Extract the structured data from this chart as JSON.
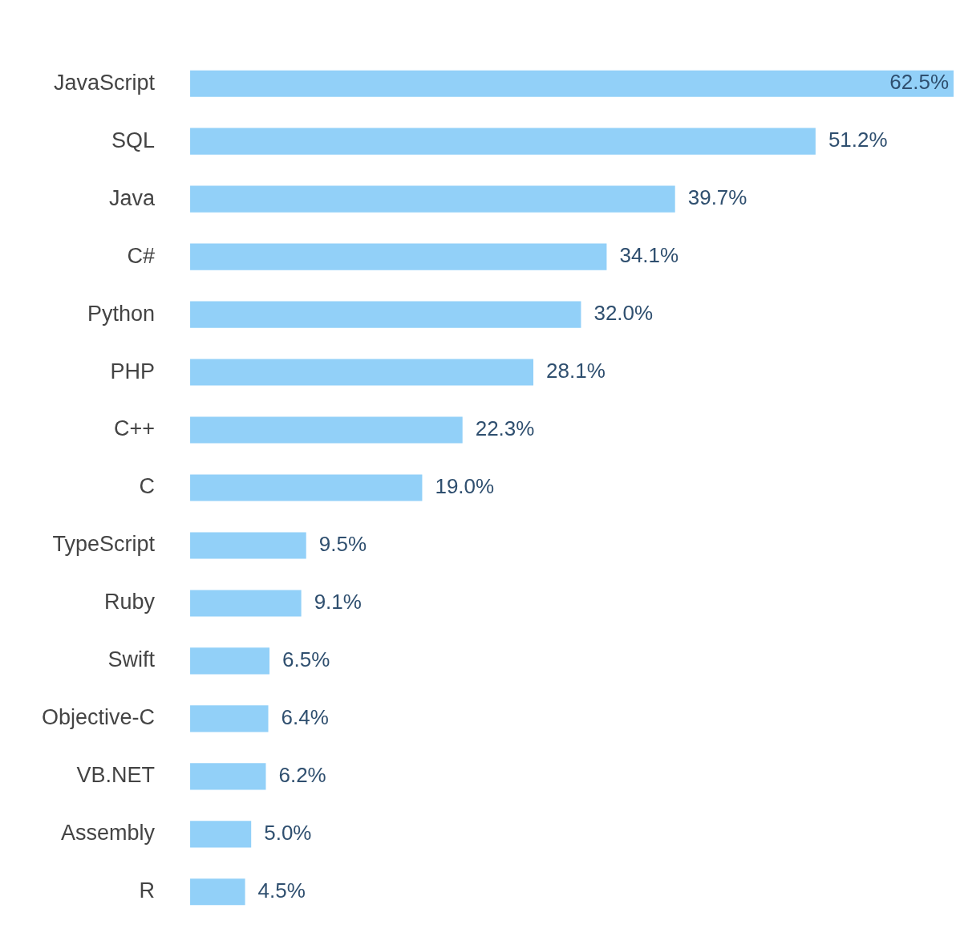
{
  "chart_data": {
    "type": "bar",
    "orientation": "horizontal",
    "categories": [
      "JavaScript",
      "SQL",
      "Java",
      "C#",
      "Python",
      "PHP",
      "C++",
      "C",
      "TypeScript",
      "Ruby",
      "Swift",
      "Objective-C",
      "VB.NET",
      "Assembly",
      "R"
    ],
    "values": [
      62.5,
      51.2,
      39.7,
      34.1,
      32.0,
      28.1,
      22.3,
      19.0,
      9.5,
      9.1,
      6.5,
      6.4,
      6.2,
      5.0,
      4.5
    ],
    "value_labels": [
      "62.5%",
      "51.2%",
      "39.7%",
      "34.1%",
      "32.0%",
      "28.1%",
      "22.3%",
      "19.0%",
      "9.5%",
      "9.1%",
      "6.5%",
      "6.4%",
      "6.2%",
      "5.0%",
      "4.5%"
    ],
    "color": "#92d0f8",
    "grid": false,
    "legend": false
  }
}
